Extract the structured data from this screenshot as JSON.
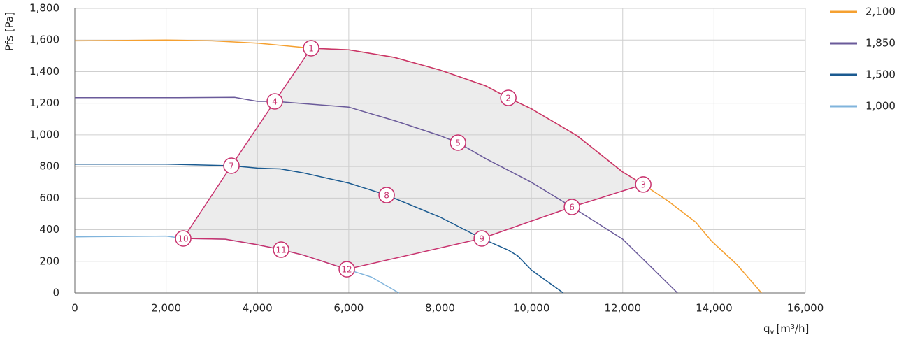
{
  "chart_data": {
    "type": "line",
    "ylabel": "Pfs [Pa]",
    "xlabel": "q",
    "xlabel_sub": "v",
    "xlabel_unit": "[m³/h]",
    "xlim": [
      0,
      16000
    ],
    "xticks": [
      0,
      {
        "value": 2000,
        "label": "2,000"
      },
      {
        "value": 4000,
        "label": "4,000"
      },
      {
        "value": 6000,
        "label": "6,000"
      },
      {
        "value": 8000,
        "label": "8,000"
      },
      {
        "value": 10000,
        "label": "10,000"
      },
      {
        "value": 12000,
        "label": "12,000"
      },
      {
        "value": 14000,
        "label": "14,000"
      },
      {
        "value": 16000,
        "label": "16,000"
      }
    ],
    "ylim": [
      0,
      1800
    ],
    "yticks": [
      0,
      200,
      400,
      600,
      800,
      {
        "value": 1000,
        "label": "1,000"
      },
      {
        "value": 1200,
        "label": "1,200"
      },
      {
        "value": 1400,
        "label": "1,400"
      },
      {
        "value": 1600,
        "label": "1,600"
      },
      {
        "value": 1800,
        "label": "1,800"
      }
    ],
    "grid": true,
    "legend": "right",
    "series": [
      {
        "name": "2,100",
        "color": "#f5a030",
        "x": [
          0,
          2000,
          3000,
          4000,
          5176,
          6000,
          7000,
          8000,
          9000,
          9495,
          10000,
          11000,
          12000,
          12450,
          13000,
          13600,
          13950,
          14500,
          15040
        ],
        "values": [
          1595,
          1600,
          1595,
          1580,
          1548,
          1538,
          1490,
          1410,
          1310,
          1234,
          1165,
          995,
          765,
          686,
          580,
          447,
          327,
          180,
          0
        ]
      },
      {
        "name": "1,850",
        "color": "#6a5a9a",
        "x": [
          0,
          2000,
          3500,
          4000,
          4380,
          6000,
          7000,
          8000,
          8392,
          9000,
          10000,
          10888,
          12000,
          13200
        ],
        "values": [
          1235,
          1235,
          1237,
          1212,
          1212,
          1175,
          1090,
          995,
          951,
          850,
          700,
          544,
          340,
          0
        ]
      },
      {
        "name": "1,500",
        "color": "#1a5a90",
        "x": [
          0,
          2000,
          3430,
          4000,
          4500,
          5000,
          6000,
          6830,
          8000,
          8913,
          9500,
          9700,
          10000,
          10700
        ],
        "values": [
          815,
          815,
          805,
          790,
          785,
          760,
          695,
          619,
          480,
          345,
          270,
          235,
          145,
          0
        ]
      },
      {
        "name": "1,000",
        "color": "#80b4dc",
        "x": [
          0,
          2000,
          2374,
          3300,
          4000,
          4518,
          5000,
          5957,
          6500,
          7100
        ],
        "values": [
          355,
          360,
          345,
          340,
          305,
          274,
          240,
          150,
          100,
          0
        ]
      }
    ],
    "range_color": "#c8326e",
    "operating_range": {
      "x": [
        2374,
        3430,
        4380,
        5176,
        6000,
        7000,
        8000,
        9000,
        9495,
        10000,
        11000,
        12000,
        12450,
        10888,
        8913,
        5957,
        5000,
        4518,
        4000,
        3300
      ],
      "y": [
        345,
        805,
        1212,
        1548,
        1538,
        1490,
        1410,
        1310,
        1234,
        1165,
        995,
        765,
        686,
        544,
        345,
        150,
        240,
        274,
        305,
        340
      ]
    },
    "points": [
      {
        "label": "1",
        "x": 5176,
        "y": 1548
      },
      {
        "label": "2",
        "x": 9495,
        "y": 1234
      },
      {
        "label": "3",
        "x": 12450,
        "y": 686
      },
      {
        "label": "4",
        "x": 4380,
        "y": 1212
      },
      {
        "label": "5",
        "x": 8392,
        "y": 951
      },
      {
        "label": "6",
        "x": 10888,
        "y": 544
      },
      {
        "label": "7",
        "x": 3430,
        "y": 805
      },
      {
        "label": "8",
        "x": 6830,
        "y": 619
      },
      {
        "label": "9",
        "x": 8913,
        "y": 345
      },
      {
        "label": "10",
        "x": 2374,
        "y": 345
      },
      {
        "label": "11",
        "x": 4518,
        "y": 274
      },
      {
        "label": "12",
        "x": 5957,
        "y": 150
      }
    ]
  }
}
